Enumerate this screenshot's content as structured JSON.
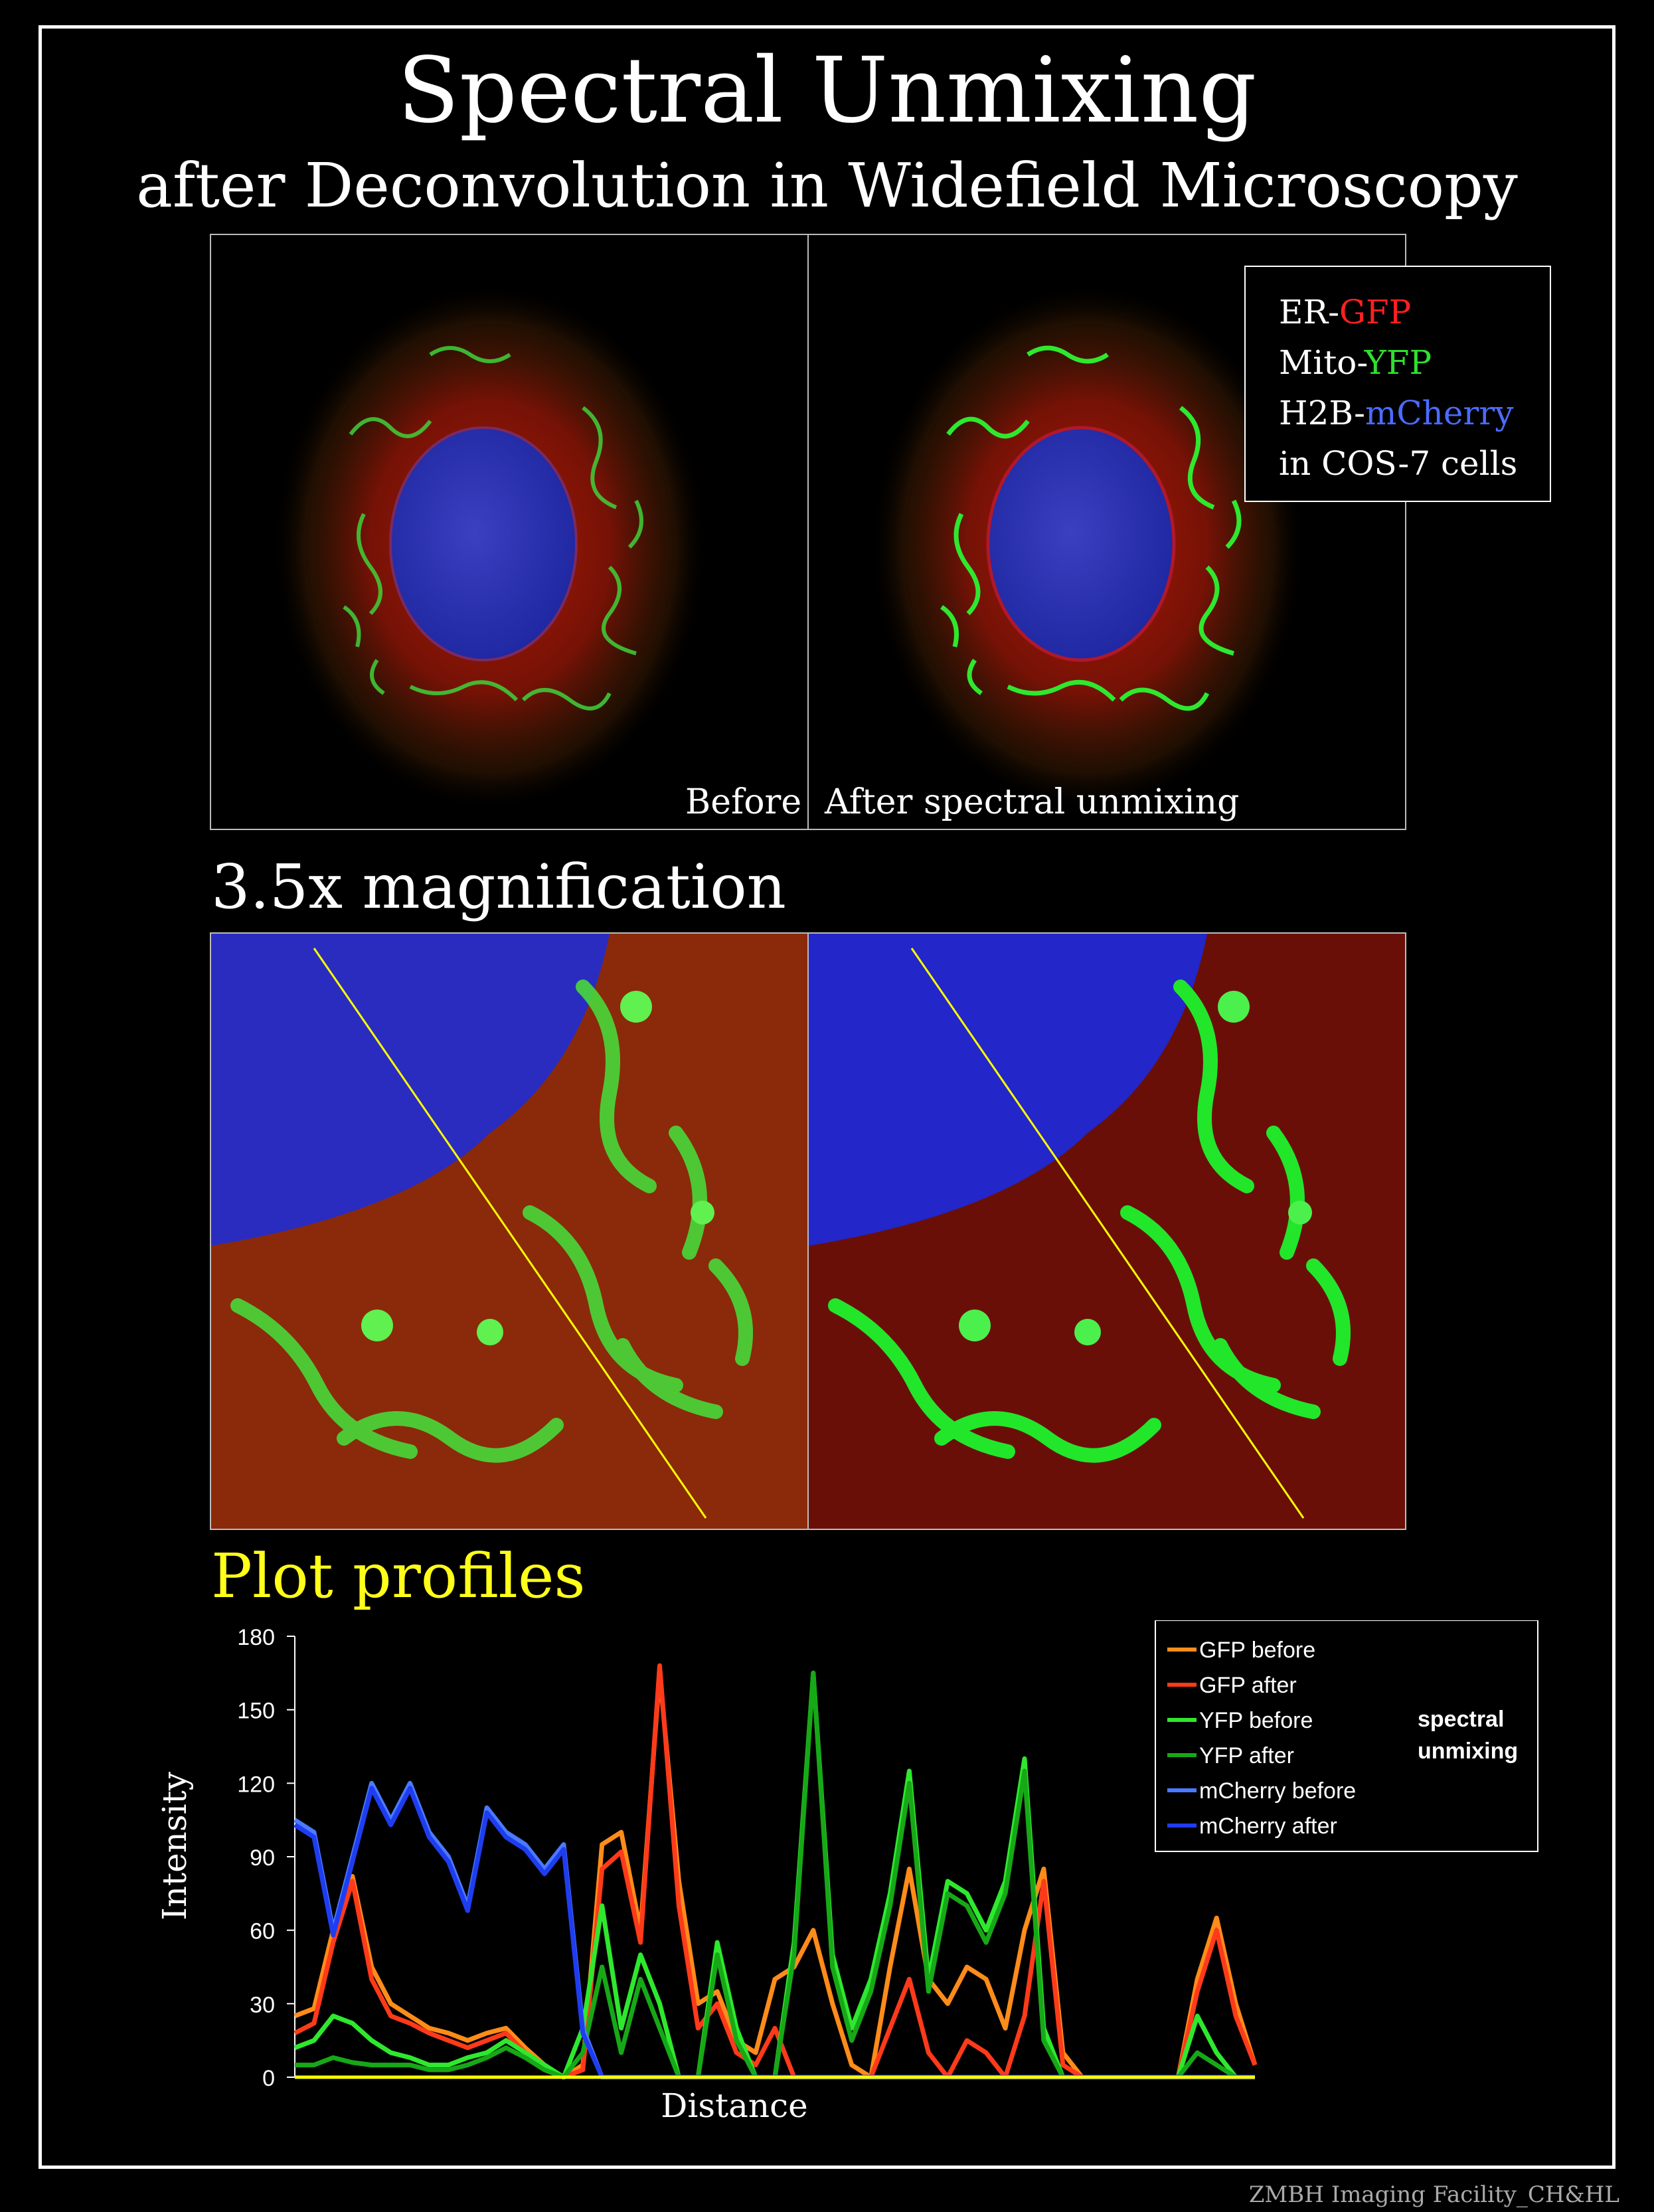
{
  "title": "Spectral Unmixing",
  "subtitle": "after Deconvolution in Widefield Microscopy",
  "panels": {
    "before_label": "Before",
    "after_label": "After spectral unmixing"
  },
  "legend_box": {
    "rows": [
      {
        "prefix": "ER-",
        "highlight": "GFP",
        "color": "#ff2020"
      },
      {
        "prefix": "Mito-",
        "highlight": "YFP",
        "color": "#30e030"
      },
      {
        "prefix": "H2B-",
        "highlight": "mCherry",
        "color": "#4a6cff"
      },
      {
        "prefix": "in COS-7 cells",
        "highlight": "",
        "color": "#ffffff"
      }
    ]
  },
  "magnification_heading": "3.5x magnification",
  "plot_heading": "Plot profiles",
  "footer": "ZMBH Imaging Facility_CH&HL",
  "chart_data": {
    "type": "line",
    "title": "",
    "xlabel": "Distance",
    "ylabel": "Intensity",
    "ylim": [
      0,
      180
    ],
    "yticks": [
      "0",
      "30",
      "60",
      "90",
      "120",
      "150",
      "180"
    ],
    "x": [
      0,
      2,
      4,
      6,
      8,
      10,
      12,
      14,
      16,
      18,
      20,
      22,
      24,
      26,
      28,
      30,
      32,
      34,
      36,
      38,
      40,
      42,
      44,
      46,
      48,
      50,
      52,
      54,
      56,
      58,
      60,
      62,
      64,
      66,
      68,
      70,
      72,
      74,
      76,
      78,
      80,
      82,
      84,
      86,
      88,
      90,
      92,
      94,
      96,
      98,
      100
    ],
    "legend_annotation": [
      "spectral",
      "unmixing"
    ],
    "series": [
      {
        "name": "GFP before",
        "color": "#ff8c1a",
        "values": [
          25,
          28,
          60,
          82,
          45,
          30,
          25,
          20,
          18,
          15,
          18,
          20,
          12,
          5,
          0,
          5,
          95,
          100,
          60,
          165,
          80,
          30,
          35,
          15,
          10,
          40,
          45,
          60,
          30,
          5,
          0,
          45,
          85,
          40,
          30,
          45,
          40,
          20,
          60,
          85,
          10,
          0,
          0,
          0,
          0,
          0,
          0,
          40,
          65,
          30,
          5
        ]
      },
      {
        "name": "GFP after",
        "color": "#ff3a1a",
        "values": [
          18,
          22,
          55,
          80,
          40,
          25,
          22,
          18,
          15,
          12,
          15,
          18,
          10,
          3,
          0,
          3,
          85,
          92,
          55,
          168,
          70,
          20,
          30,
          10,
          5,
          20,
          0,
          0,
          0,
          0,
          0,
          20,
          40,
          10,
          0,
          15,
          10,
          0,
          25,
          80,
          5,
          0,
          0,
          0,
          0,
          0,
          0,
          35,
          60,
          25,
          5
        ]
      },
      {
        "name": "YFP before",
        "color": "#2ee82e",
        "values": [
          12,
          15,
          25,
          22,
          15,
          10,
          8,
          5,
          5,
          8,
          10,
          15,
          10,
          5,
          0,
          20,
          70,
          20,
          50,
          30,
          0,
          0,
          55,
          20,
          0,
          0,
          55,
          165,
          50,
          20,
          40,
          75,
          125,
          40,
          80,
          75,
          60,
          80,
          130,
          20,
          0,
          0,
          0,
          0,
          0,
          0,
          0,
          25,
          10,
          0,
          0
        ]
      },
      {
        "name": "YFP after",
        "color": "#17a817",
        "values": [
          5,
          5,
          8,
          6,
          5,
          5,
          5,
          3,
          3,
          5,
          8,
          12,
          8,
          3,
          0,
          10,
          45,
          10,
          40,
          20,
          0,
          0,
          50,
          15,
          0,
          0,
          50,
          165,
          45,
          15,
          35,
          70,
          120,
          35,
          75,
          70,
          55,
          75,
          125,
          15,
          0,
          0,
          0,
          0,
          0,
          0,
          0,
          10,
          5,
          0,
          0
        ]
      },
      {
        "name": "mCherry before",
        "color": "#4a7aff",
        "values": [
          105,
          100,
          60,
          90,
          120,
          105,
          120,
          100,
          90,
          70,
          110,
          100,
          95,
          85,
          95,
          20,
          0,
          0,
          0,
          0,
          0,
          0,
          0,
          0,
          0,
          0,
          0,
          0,
          0,
          0,
          0,
          0,
          0,
          0,
          0,
          0,
          0,
          0,
          0,
          0,
          0,
          0,
          0,
          0,
          0,
          0,
          0,
          0,
          0,
          0,
          0
        ]
      },
      {
        "name": "mCherry after",
        "color": "#1f3df0",
        "values": [
          103,
          98,
          58,
          88,
          118,
          103,
          118,
          98,
          88,
          68,
          108,
          98,
          93,
          83,
          93,
          18,
          0,
          0,
          0,
          0,
          0,
          0,
          0,
          0,
          0,
          0,
          0,
          0,
          0,
          0,
          0,
          0,
          0,
          0,
          0,
          0,
          0,
          0,
          0,
          0,
          0,
          0,
          0,
          0,
          0,
          0,
          0,
          0,
          0,
          0,
          0
        ]
      }
    ]
  }
}
